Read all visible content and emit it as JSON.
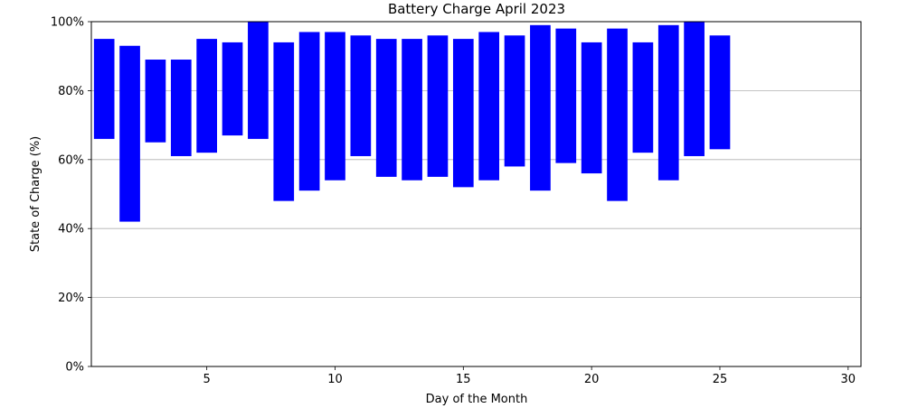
{
  "chart_data": {
    "type": "bar",
    "title": "Battery Charge April 2023",
    "xlabel": "Day of the Month",
    "ylabel": "State of Charge (%)",
    "xlim": [
      0.5,
      30.5
    ],
    "ylim": [
      0,
      100
    ],
    "xticks": [
      5,
      10,
      15,
      20,
      25,
      30
    ],
    "xtick_labels": [
      "5",
      "10",
      "15",
      "20",
      "25",
      "30"
    ],
    "yticks": [
      0,
      20,
      40,
      60,
      80,
      100
    ],
    "ytick_labels": [
      "0%",
      "20%",
      "40%",
      "60%",
      "80%",
      "100%"
    ],
    "grid": "horizontal",
    "bar_color": "#0000ff",
    "grid_color": "#b0b0b0",
    "series": [
      {
        "days": [
          1,
          2,
          3,
          4,
          5,
          6,
          7,
          8,
          9,
          10,
          11,
          12,
          13,
          14,
          15,
          16,
          17,
          18,
          19,
          20,
          21,
          22,
          23,
          24,
          25
        ],
        "low": [
          66,
          42,
          65,
          61,
          62,
          67,
          66,
          48,
          51,
          54,
          61,
          55,
          54,
          55,
          52,
          54,
          58,
          51,
          59,
          56,
          48,
          62,
          54,
          61,
          63
        ],
        "high": [
          95,
          93,
          89,
          89,
          95,
          94,
          100,
          94,
          97,
          97,
          96,
          95,
          95,
          96,
          95,
          97,
          96,
          99,
          98,
          94,
          98,
          94,
          99,
          100,
          96
        ]
      }
    ]
  }
}
